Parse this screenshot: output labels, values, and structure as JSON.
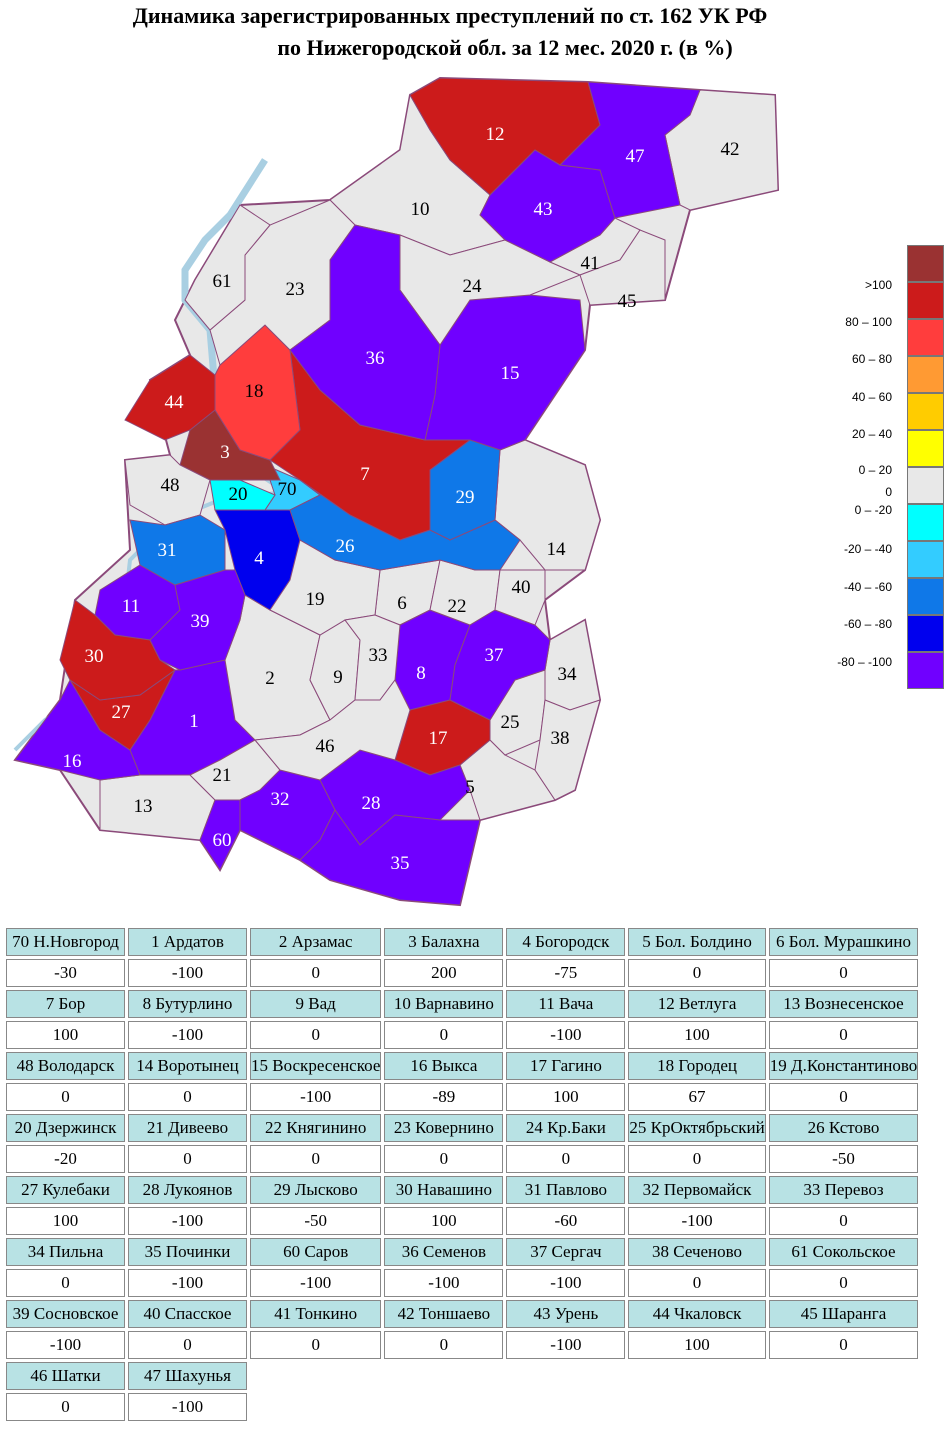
{
  "title": {
    "line1": "Динамика зарегистрированных преступлений по ст. 162 УК РФ",
    "line2": "по Нижегородской обл. за 12 мес. 2020 г. (в %)"
  },
  "colors": {
    "over100": "#9a3232",
    "c80_100": "#cc1b1b",
    "c60_80": "#ff3d3d",
    "c40_60": "#ff9a33",
    "c20_40": "#ffcc00",
    "c0_20": "#ffff00",
    "zero": "#e8e8e8",
    "m0_20": "#00ffff",
    "m20_40": "#33ccff",
    "m40_60": "#0f78e8",
    "m60_80": "#0000ee",
    "m80_100": "#7000ff",
    "border": "#8b4a7a",
    "river": "#a9cfe2"
  },
  "legend": [
    {
      "label": ">100",
      "color": "#9a3232"
    },
    {
      "label": "80 – 100",
      "color": "#cc1b1b"
    },
    {
      "label": "60 – 80",
      "color": "#ff3d3d"
    },
    {
      "label": "40 – 60",
      "color": "#ff9a33"
    },
    {
      "label": "20 – 40",
      "color": "#ffcc00"
    },
    {
      "label": "0 – 20",
      "color": "#ffff00"
    },
    {
      "label": "0",
      "color": "#e8e8e8"
    },
    {
      "label": "0 – -20",
      "color": "#00ffff"
    },
    {
      "label": "-20 – -40",
      "color": "#33ccff"
    },
    {
      "label": "-40 – -60",
      "color": "#0f78e8"
    },
    {
      "label": "-60 – -80",
      "color": "#0000ee"
    },
    {
      "label": "-80 – -100",
      "color": "#7000ff"
    }
  ],
  "districts": [
    {
      "num": "70",
      "name": "70 Н.Новгород",
      "value": "-30"
    },
    {
      "num": "1",
      "name": "1 Ардатов",
      "value": "-100"
    },
    {
      "num": "2",
      "name": "2 Арзамас",
      "value": "0"
    },
    {
      "num": "3",
      "name": "3 Балахна",
      "value": "200"
    },
    {
      "num": "4",
      "name": "4 Богородск",
      "value": "-75"
    },
    {
      "num": "5",
      "name": "5 Бол. Болдино",
      "value": "0"
    },
    {
      "num": "6",
      "name": "6 Бол. Мурашкино",
      "value": "0"
    },
    {
      "num": "7",
      "name": "7 Бор",
      "value": "100"
    },
    {
      "num": "8",
      "name": "8 Бутурлино",
      "value": "-100"
    },
    {
      "num": "9",
      "name": "9 Вад",
      "value": "0"
    },
    {
      "num": "10",
      "name": "10 Варнавино",
      "value": "0"
    },
    {
      "num": "11",
      "name": "11 Вача",
      "value": "-100"
    },
    {
      "num": "12",
      "name": "12 Ветлуга",
      "value": "100"
    },
    {
      "num": "13",
      "name": "13 Вознесенское",
      "value": "0"
    },
    {
      "num": "48",
      "name": "48 Володарск",
      "value": "0"
    },
    {
      "num": "14",
      "name": "14 Воротынец",
      "value": "0"
    },
    {
      "num": "15",
      "name": "15 Воскресенское",
      "value": "-100"
    },
    {
      "num": "16",
      "name": "16 Выкса",
      "value": "-89"
    },
    {
      "num": "17",
      "name": "17 Гагино",
      "value": "100"
    },
    {
      "num": "18",
      "name": "18 Городец",
      "value": "67"
    },
    {
      "num": "19",
      "name": "19 Д.Константиново",
      "value": "0"
    },
    {
      "num": "20",
      "name": "20 Дзержинск",
      "value": "-20"
    },
    {
      "num": "21",
      "name": "21 Дивеево",
      "value": "0"
    },
    {
      "num": "22",
      "name": "22 Княгинино",
      "value": "0"
    },
    {
      "num": "23",
      "name": "23 Ковернино",
      "value": "0"
    },
    {
      "num": "24",
      "name": "24 Кр.Баки",
      "value": "0"
    },
    {
      "num": "25",
      "name": "25 КрОктябрьский",
      "value": "0"
    },
    {
      "num": "26",
      "name": "26 Кстово",
      "value": "-50"
    },
    {
      "num": "27",
      "name": "27 Кулебаки",
      "value": "100"
    },
    {
      "num": "28",
      "name": "28 Лукоянов",
      "value": "-100"
    },
    {
      "num": "29",
      "name": "29 Лысково",
      "value": "-50"
    },
    {
      "num": "30",
      "name": "30 Навашино",
      "value": "100"
    },
    {
      "num": "31",
      "name": "31 Павлово",
      "value": "-60"
    },
    {
      "num": "32",
      "name": "32 Первомайск",
      "value": "-100"
    },
    {
      "num": "33",
      "name": "33 Перевоз",
      "value": "0"
    },
    {
      "num": "34",
      "name": "34 Пильна",
      "value": "0"
    },
    {
      "num": "35",
      "name": "35 Починки",
      "value": "-100"
    },
    {
      "num": "60",
      "name": "60 Саров",
      "value": "-100"
    },
    {
      "num": "36",
      "name": "36 Семенов",
      "value": "-100"
    },
    {
      "num": "37",
      "name": "37 Сергач",
      "value": "-100"
    },
    {
      "num": "38",
      "name": "38 Сеченово",
      "value": "0"
    },
    {
      "num": "61",
      "name": "61 Сокольское",
      "value": "0"
    },
    {
      "num": "39",
      "name": "39 Сосновское",
      "value": "-100"
    },
    {
      "num": "40",
      "name": "40 Спасское",
      "value": "0"
    },
    {
      "num": "41",
      "name": "41 Тонкино",
      "value": "0"
    },
    {
      "num": "42",
      "name": "42 Тоншаево",
      "value": "0"
    },
    {
      "num": "43",
      "name": "43 Урень",
      "value": "-100"
    },
    {
      "num": "44",
      "name": "44 Чкаловск",
      "value": "100"
    },
    {
      "num": "45",
      "name": "45 Шаранга",
      "value": "0"
    },
    {
      "num": "46",
      "name": "46 Шатки",
      "value": "0"
    },
    {
      "num": "47",
      "name": "47 Шахунья",
      "value": "-100"
    }
  ]
}
